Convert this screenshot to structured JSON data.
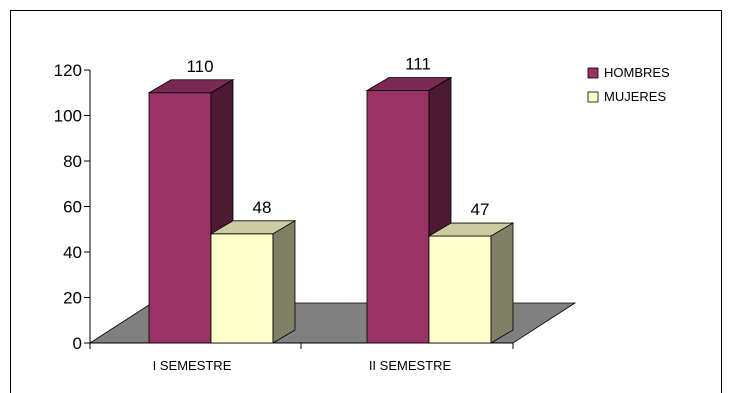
{
  "chart_data": {
    "type": "bar",
    "categories": [
      "I SEMESTRE",
      "II SEMESTRE"
    ],
    "series": [
      {
        "name": "HOMBRES",
        "values": [
          110,
          111
        ],
        "color": "#993366"
      },
      {
        "name": "MUJERES",
        "values": [
          48,
          47
        ],
        "color": "#FFFFCC"
      }
    ],
    "ylim": [
      0,
      120
    ],
    "yticks": [
      0,
      20,
      40,
      60,
      80,
      100,
      120
    ],
    "legend_position": "top-right",
    "grid": false,
    "three_d": true,
    "floor_color": "#808080"
  }
}
